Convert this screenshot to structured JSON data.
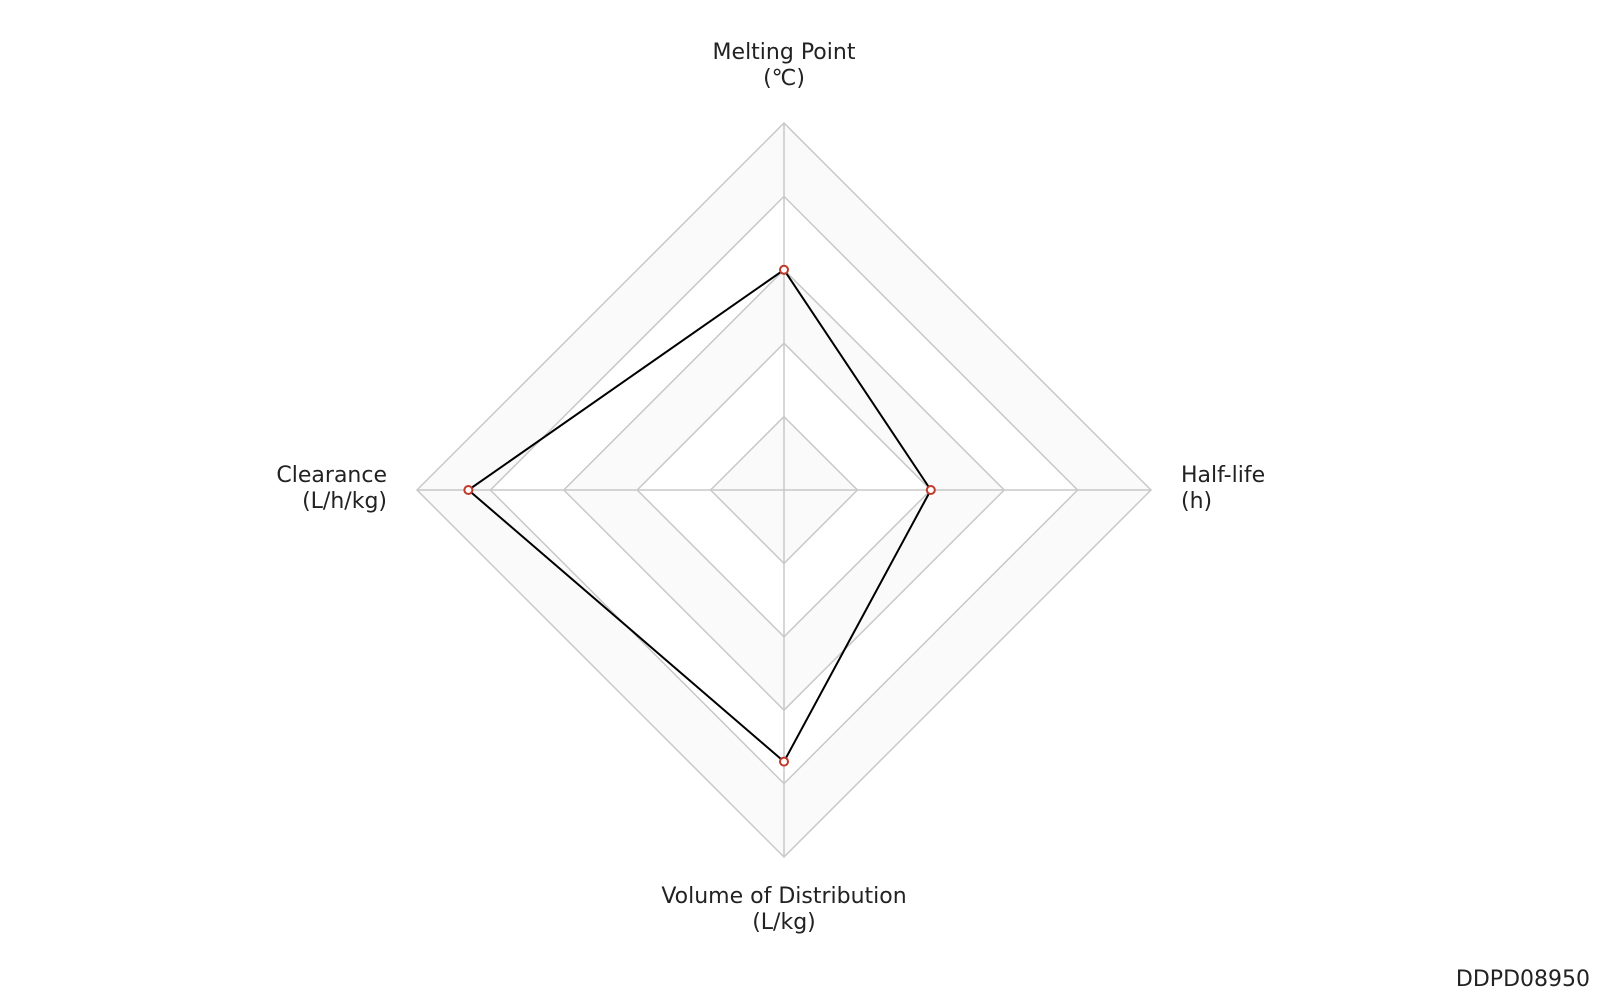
{
  "chart_data": {
    "type": "radar",
    "categories": [
      [
        "Melting Point",
        "(℃)"
      ],
      [
        "Half-life",
        "(h)"
      ],
      [
        "Volume of Distribution",
        "(L/kg)"
      ],
      [
        "Clearance",
        "(L/h/kg)"
      ]
    ],
    "values": [
      0.6,
      0.4,
      0.74,
      0.86
    ],
    "color": "#000000",
    "marker_color": "#c0392b",
    "rlim": [
      0,
      1
    ],
    "rticks": [
      0.2,
      0.4,
      0.6,
      0.8,
      1.0
    ],
    "band_colors": [
      "#ffffff",
      "#ececec"
    ],
    "grid": true,
    "footer": "DDPD08950"
  }
}
